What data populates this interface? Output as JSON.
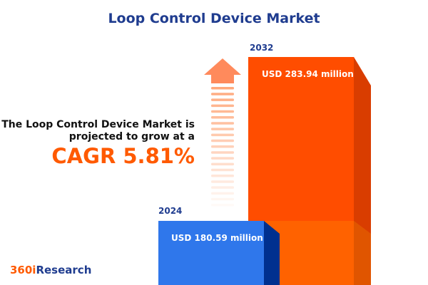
{
  "title": "Loop Control Device Market",
  "description_line1": "The Loop Control Device Market is",
  "description_line2": "projected to grow at a",
  "cagr_text": "CAGR 5.81%",
  "logo": {
    "part1": "360i",
    "part2": "Research"
  },
  "colors": {
    "bar_2024": "#2f77eb",
    "bar_2032": "#ff4d00",
    "title": "#1f3c8f",
    "cagr": "#ff5a00"
  },
  "chart_data": {
    "type": "bar",
    "categories": [
      "2024",
      "2032"
    ],
    "values": [
      180.59,
      283.94
    ],
    "value_labels": [
      "USD 180.59 million",
      "USD 283.94 million"
    ],
    "unit": "USD million",
    "cagr_percent": 5.81
  }
}
